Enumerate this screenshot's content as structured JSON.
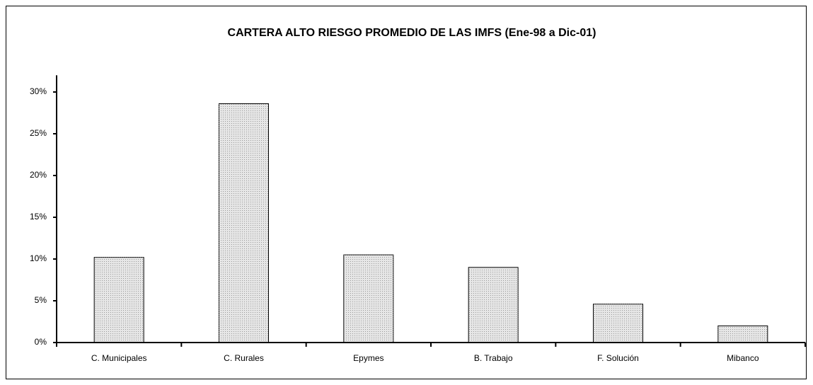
{
  "chart_data": {
    "type": "bar",
    "title": "CARTERA ALTO RIESGO PROMEDIO DE LAS IMFS (Ene-98 a Dic-01)",
    "categories": [
      "C. Municipales",
      "C. Rurales",
      "Epymes",
      "B. Trabajo",
      "F. Solución",
      "Mibanco"
    ],
    "values": [
      10.2,
      28.6,
      10.5,
      9.0,
      4.6,
      2.0
    ],
    "color": "#e6e6e6",
    "ylim": [
      0,
      32
    ],
    "yticks": [
      {
        "value": 0,
        "label": "0%"
      },
      {
        "value": 5,
        "label": "5%"
      },
      {
        "value": 10,
        "label": "10%"
      },
      {
        "value": 15,
        "label": "15%"
      },
      {
        "value": 20,
        "label": "20%"
      },
      {
        "value": 25,
        "label": "25%"
      },
      {
        "value": 30,
        "label": "30%"
      }
    ],
    "grid": false
  }
}
